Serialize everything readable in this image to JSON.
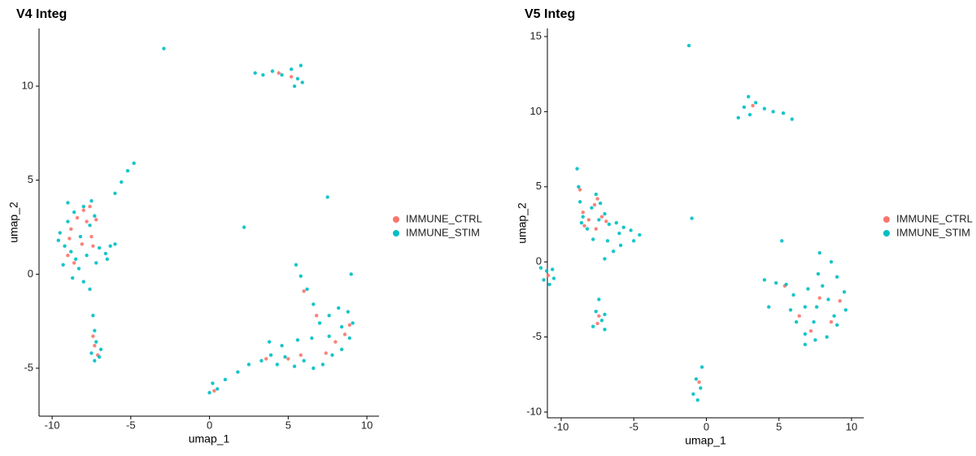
{
  "chart_data": [
    {
      "type": "scatter",
      "title": "V4 Integ",
      "x_label": "umap_1",
      "y_label": "umap_2",
      "xlim": [
        -10.83,
        10.77
      ],
      "ylim": [
        -7.55,
        13.07
      ],
      "xticks": [
        -10,
        -5,
        0,
        5,
        10
      ],
      "yticks": [
        -5,
        0,
        5,
        10
      ],
      "series": [
        {
          "name": "IMMUNE_CTRL",
          "color": "#F8766D",
          "x": [
            -8.8,
            -8.4,
            -8.0,
            -7.6,
            -7.2,
            -7.5,
            -8.1,
            -8.9,
            -7.8,
            -7.4,
            -8.6,
            -9.0,
            -7.3,
            -7.1,
            -7.4,
            5.2,
            4.4,
            8.0,
            7.4,
            8.6,
            6.8,
            5.0,
            3.6,
            6.0,
            0.3,
            8.9,
            5.8
          ],
          "y": [
            2.4,
            3.0,
            3.4,
            3.6,
            2.9,
            2.0,
            1.6,
            1.9,
            2.8,
            1.5,
            0.6,
            1.0,
            -3.8,
            -4.3,
            -3.3,
            10.5,
            10.7,
            -3.6,
            -4.2,
            -3.2,
            -2.2,
            -4.5,
            -4.5,
            -0.9,
            -6.2,
            -2.7,
            -4.3
          ]
        },
        {
          "name": "IMMUNE_STIM",
          "color": "#00BFC4",
          "x": [
            -9.5,
            -9.2,
            -9.0,
            -8.8,
            -8.6,
            -8.5,
            -8.2,
            -8.0,
            -7.8,
            -7.6,
            -7.3,
            -7.0,
            -6.6,
            -6.3,
            -6.0,
            -6.5,
            -9.3,
            -8.7,
            -8.0,
            -7.6,
            -9.0,
            -7.5,
            -8.3,
            -9.6,
            -7.2,
            -6.0,
            -5.6,
            -5.2,
            -4.8,
            -7.4,
            -7.3,
            -7.2,
            -7.5,
            -7.0,
            -6.9,
            -7.3,
            2.9,
            3.4,
            4.0,
            4.6,
            5.2,
            5.6,
            5.8,
            5.9,
            5.4,
            0.0,
            0.5,
            0.2,
            1.0,
            1.8,
            2.5,
            3.3,
            3.9,
            4.3,
            4.8,
            5.4,
            6.0,
            6.6,
            7.2,
            7.8,
            8.4,
            8.9,
            9.1,
            8.8,
            8.2,
            7.6,
            7.0,
            6.6,
            6.2,
            5.8,
            5.5,
            6.5,
            7.6,
            8.4,
            5.6,
            4.6,
            3.8,
            9.0,
            -2.9,
            7.5,
            2.2
          ],
          "y": [
            2.2,
            1.5,
            2.8,
            1.2,
            3.3,
            0.8,
            2.0,
            3.6,
            1.0,
            2.6,
            3.1,
            1.4,
            1.1,
            1.5,
            1.6,
            0.8,
            0.5,
            -0.2,
            -0.4,
            -0.8,
            3.8,
            3.9,
            0.3,
            1.8,
            0.6,
            4.3,
            4.9,
            5.5,
            5.9,
            -2.2,
            -3.0,
            -3.6,
            -4.2,
            -4.4,
            -4.0,
            -4.6,
            10.7,
            10.6,
            10.8,
            10.6,
            10.9,
            10.4,
            11.1,
            10.2,
            10.0,
            -6.3,
            -6.1,
            -5.8,
            -5.6,
            -5.2,
            -4.8,
            -4.6,
            -4.3,
            -4.8,
            -4.4,
            -4.9,
            -4.6,
            -5.0,
            -4.8,
            -4.3,
            -4.0,
            -3.4,
            -2.6,
            -2.0,
            -1.8,
            -2.2,
            -2.6,
            -1.6,
            -0.8,
            -0.1,
            0.5,
            -3.4,
            -3.3,
            -2.8,
            -3.5,
            -3.8,
            -3.6,
            0.0,
            12.0,
            4.1,
            2.5
          ]
        }
      ]
    },
    {
      "type": "scatter",
      "title": "V5 Integ",
      "x_label": "umap_1",
      "y_label": "umap_2",
      "xlim": [
        -10.95,
        10.84
      ],
      "ylim": [
        -10.38,
        15.54
      ],
      "xticks": [
        -10,
        -5,
        0,
        5,
        10
      ],
      "yticks": [
        -10,
        -5,
        0,
        5,
        10,
        15
      ],
      "series": [
        {
          "name": "IMMUNE_CTRL",
          "color": "#F8766D",
          "x": [
            -8.7,
            -8.5,
            -8.1,
            -7.7,
            -7.5,
            -7.2,
            -8.4,
            -6.9,
            -7.6,
            -7.4,
            -7.5,
            -0.5,
            3.2,
            7.8,
            8.6,
            6.4,
            9.2,
            7.2,
            5.4,
            -10.9
          ],
          "y": [
            4.8,
            3.3,
            2.8,
            3.8,
            4.2,
            3.0,
            2.4,
            2.7,
            2.2,
            -3.6,
            -4.1,
            -8.0,
            10.4,
            -2.4,
            -4.0,
            -3.6,
            -2.6,
            -4.6,
            -1.6,
            -0.9
          ]
        },
        {
          "name": "IMMUNE_STIM",
          "color": "#00BFC4",
          "x": [
            -8.9,
            -8.8,
            -8.7,
            -8.5,
            -8.2,
            -7.9,
            -7.6,
            -7.4,
            -7.0,
            -6.7,
            -6.2,
            -5.7,
            -5.2,
            -4.6,
            -6.8,
            -6.4,
            -7.0,
            -5.9,
            -8.6,
            -7.8,
            -6.0,
            -5.0,
            -7.3,
            -11.4,
            -11.0,
            -10.6,
            -11.2,
            -10.8,
            -10.5,
            -7.4,
            -7.6,
            -7.2,
            -7.8,
            -7.0,
            -7.0,
            -0.3,
            -0.7,
            -0.4,
            -0.9,
            -0.6,
            2.2,
            2.6,
            2.9,
            3.4,
            4.0,
            4.6,
            5.3,
            5.9,
            3.0,
            4.0,
            4.8,
            5.5,
            6.0,
            5.8,
            6.2,
            6.8,
            7.5,
            8.3,
            9.0,
            9.6,
            9.5,
            9.0,
            8.6,
            7.8,
            7.7,
            7.0,
            7.6,
            8.4,
            8.8,
            6.8,
            7.4,
            8.0,
            4.3,
            6.8,
            -1.2,
            -1.0,
            5.2
          ],
          "y": [
            6.2,
            5.0,
            4.0,
            3.0,
            2.2,
            3.6,
            4.5,
            2.8,
            3.2,
            2.5,
            2.6,
            2.3,
            2.1,
            1.8,
            1.4,
            0.7,
            0.2,
            1.1,
            2.6,
            1.5,
            1.9,
            1.4,
            3.9,
            -0.4,
            -0.6,
            -0.5,
            -1.2,
            -1.5,
            -1.1,
            -2.5,
            -3.3,
            -3.9,
            -4.3,
            -4.5,
            -3.5,
            -7.0,
            -7.8,
            -8.4,
            -8.8,
            -9.2,
            9.6,
            10.3,
            11.0,
            10.6,
            10.2,
            10.0,
            9.9,
            9.5,
            9.8,
            -1.2,
            -1.4,
            -1.5,
            -2.2,
            -3.2,
            -4.0,
            -4.8,
            -5.2,
            -5.0,
            -4.2,
            -3.2,
            -2.0,
            -1.0,
            0.0,
            0.6,
            -0.8,
            -1.8,
            -3.0,
            -2.5,
            -3.6,
            -3.0,
            -4.0,
            -1.6,
            -3.0,
            -5.5,
            14.4,
            2.9,
            1.4
          ]
        }
      ]
    }
  ]
}
